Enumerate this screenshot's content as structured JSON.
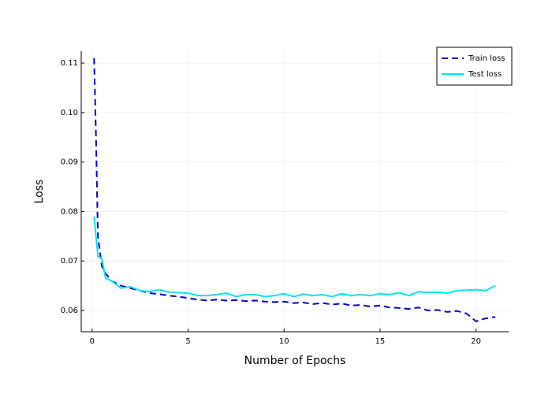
{
  "chart_data": {
    "type": "line",
    "xlabel": "Number of Epochs",
    "ylabel": "Loss",
    "x": [
      0.1,
      0.2,
      0.3,
      0.5,
      0.7,
      1,
      1.5,
      2,
      2.5,
      3,
      3.5,
      4,
      4.5,
      5,
      5.5,
      6,
      6.5,
      7,
      7.5,
      8,
      8.5,
      9,
      9.5,
      10,
      10.5,
      11,
      11.5,
      12,
      12.5,
      13,
      13.5,
      14,
      14.5,
      15,
      15.5,
      16,
      16.5,
      17,
      17.5,
      18,
      18.5,
      19,
      19.5,
      20,
      20.5,
      21
    ],
    "series": [
      {
        "name": "Train loss",
        "color": "#0000cc",
        "line_style": "dashed",
        "values": [
          0.111,
          0.095,
          0.075,
          0.069,
          0.0675,
          0.066,
          0.065,
          0.0645,
          0.064,
          0.0635,
          0.0633,
          0.063,
          0.0628,
          0.0625,
          0.0622,
          0.062,
          0.0622,
          0.062,
          0.0621,
          0.0619,
          0.062,
          0.0618,
          0.0617,
          0.0618,
          0.0615,
          0.0616,
          0.0613,
          0.0615,
          0.0612,
          0.0614,
          0.061,
          0.0611,
          0.0608,
          0.061,
          0.0606,
          0.0605,
          0.0603,
          0.0606,
          0.06,
          0.0601,
          0.0597,
          0.0599,
          0.0594,
          0.0578,
          0.0584,
          0.0587
        ]
      },
      {
        "name": "Test loss",
        "color": "#00e5ee",
        "line_style": "solid",
        "values": [
          0.079,
          0.075,
          0.071,
          0.0705,
          0.0665,
          0.066,
          0.0645,
          0.0648,
          0.064,
          0.0638,
          0.0642,
          0.0637,
          0.0636,
          0.0635,
          0.063,
          0.063,
          0.0632,
          0.0635,
          0.0628,
          0.0632,
          0.0632,
          0.0628,
          0.063,
          0.0634,
          0.0628,
          0.0633,
          0.063,
          0.0632,
          0.0628,
          0.0634,
          0.063,
          0.0632,
          0.063,
          0.0634,
          0.0632,
          0.0636,
          0.063,
          0.0638,
          0.0636,
          0.0637,
          0.0635,
          0.064,
          0.0641,
          0.0642,
          0.064,
          0.065
        ]
      }
    ],
    "xlim": [
      -0.57,
      21.7
    ],
    "xticks": [
      0,
      5,
      10,
      15,
      20
    ],
    "ylim": [
      0.0557,
      0.1124
    ],
    "yticks": [
      0.06,
      0.07,
      0.08,
      0.09,
      {
        "value": 0.1,
        "label": "0.10"
      },
      0.11
    ],
    "grid": true,
    "legend": "upper right"
  }
}
